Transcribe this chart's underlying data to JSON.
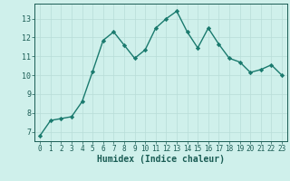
{
  "x": [
    0,
    1,
    2,
    3,
    4,
    5,
    6,
    7,
    8,
    9,
    10,
    11,
    12,
    13,
    14,
    15,
    16,
    17,
    18,
    19,
    20,
    21,
    22,
    23
  ],
  "y": [
    6.8,
    7.6,
    7.7,
    7.8,
    8.6,
    10.2,
    11.85,
    12.3,
    11.6,
    10.9,
    11.35,
    12.5,
    13.0,
    13.4,
    12.3,
    11.45,
    12.5,
    11.65,
    10.9,
    10.7,
    10.15,
    10.3,
    10.55,
    10.0
  ],
  "line_color": "#1a7a6e",
  "marker": "D",
  "marker_size": 2.2,
  "bg_color": "#cff0eb",
  "grid_color": "#b8ddd8",
  "tick_color": "#1a5c54",
  "xlabel": "Humidex (Indice chaleur)",
  "xlabel_fontsize": 7.0,
  "ylabel_ticks": [
    7,
    8,
    9,
    10,
    11,
    12,
    13
  ],
  "xlim": [
    -0.5,
    23.5
  ],
  "ylim": [
    6.5,
    13.8
  ],
  "xticks": [
    0,
    1,
    2,
    3,
    4,
    5,
    6,
    7,
    8,
    9,
    10,
    11,
    12,
    13,
    14,
    15,
    16,
    17,
    18,
    19,
    20,
    21,
    22,
    23
  ],
  "font_color": "#1a5c54",
  "linewidth": 1.0,
  "tick_fontsize": 5.5,
  "ytick_fontsize": 6.0
}
